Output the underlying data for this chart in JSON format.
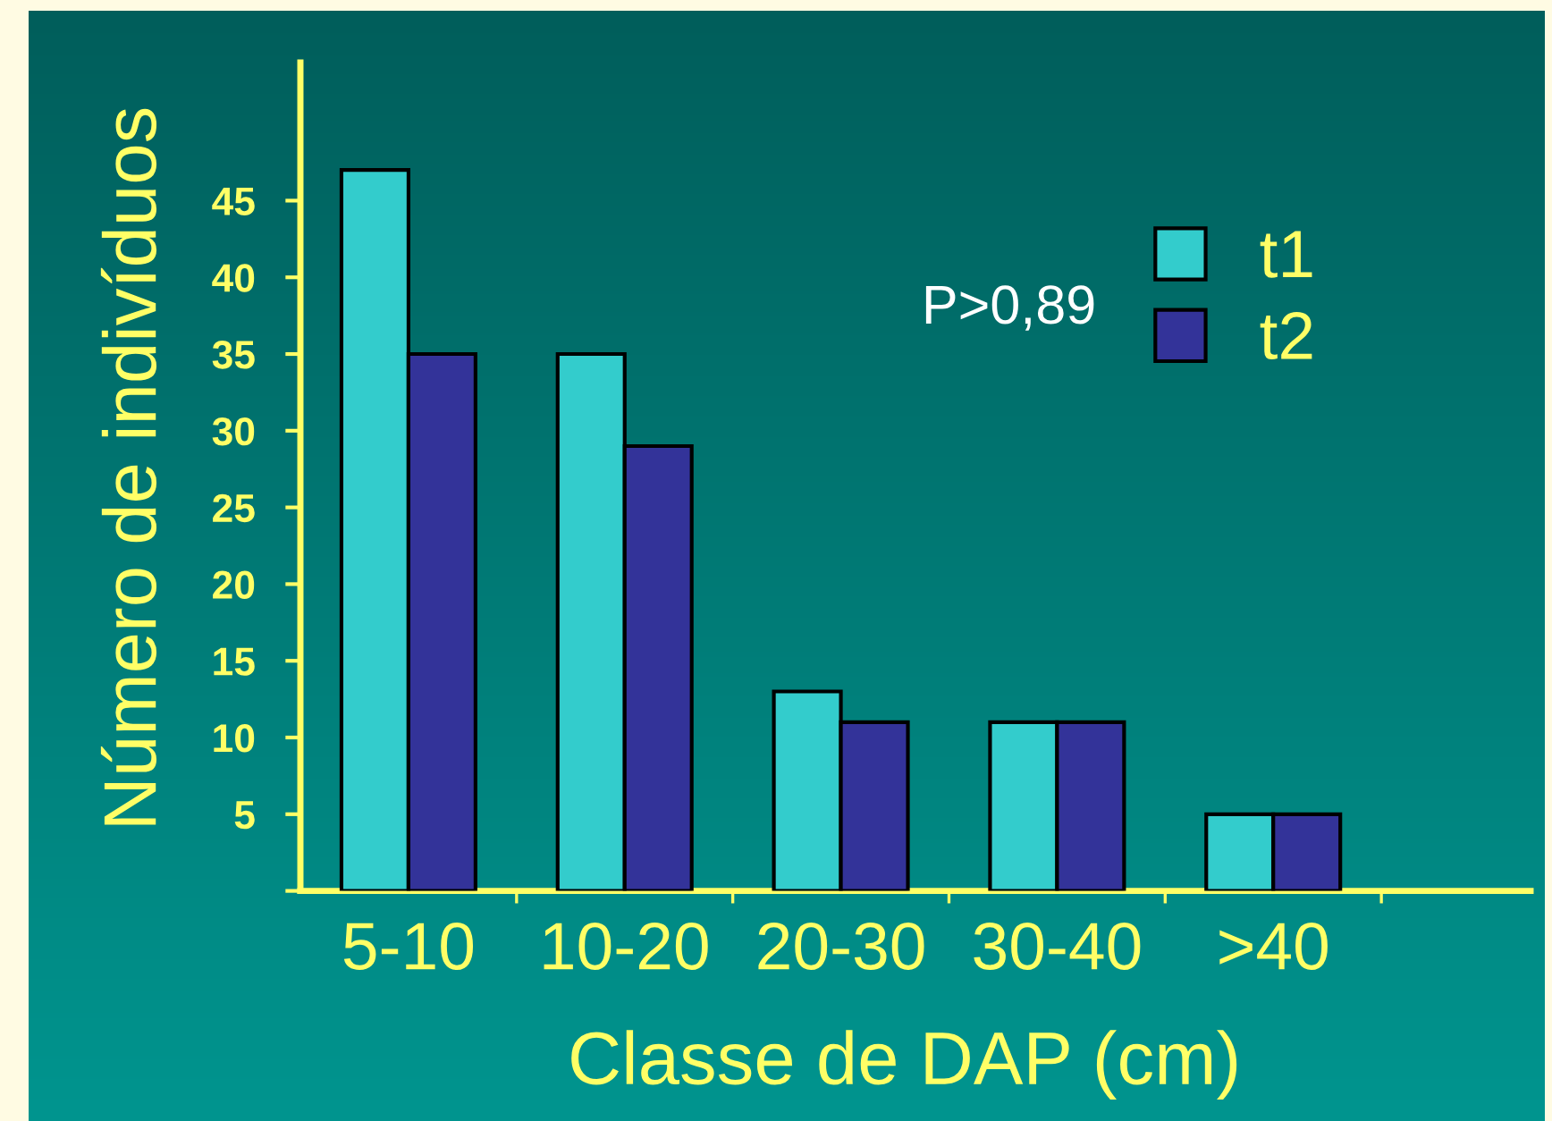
{
  "chart_data": {
    "type": "bar",
    "xlabel": "Classe de DAP (cm)",
    "ylabel": "Número de indivíduos",
    "categories": [
      "5-10",
      "10-20",
      "20-30",
      "30-40",
      ">40"
    ],
    "series": [
      {
        "name": "t1",
        "color": "#33cccc",
        "values": [
          47,
          35,
          13,
          11,
          5
        ]
      },
      {
        "name": "t2",
        "color": "#333399",
        "values": [
          35,
          29,
          11,
          11,
          5
        ]
      }
    ],
    "ylim": [
      0,
      54
    ],
    "yticks": [
      {
        "value": 0,
        "label": null
      },
      5,
      10,
      15,
      20,
      25,
      30,
      35,
      40,
      45
    ],
    "grid": false,
    "legend": "top right",
    "annotations": [
      "P>0,89"
    ]
  }
}
